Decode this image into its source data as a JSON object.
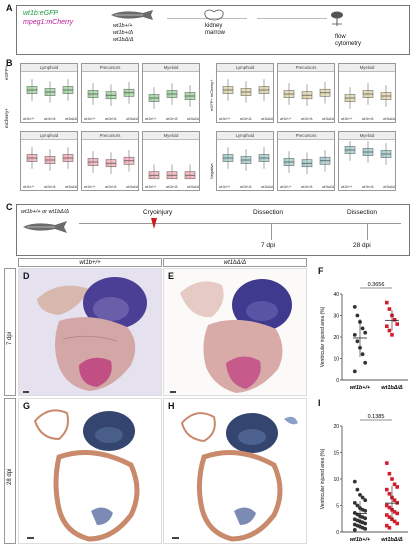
{
  "panels": {
    "A": {
      "letter": "A",
      "transgene_1": "wt1b:eGFP",
      "transgene_2": "mpeg1:mCherry",
      "genotypes": [
        "wt1b+/+",
        "wt1b+/Δ",
        "wt1bΔ/Δ"
      ],
      "kidney_label": "kidney\nmarrow",
      "flow_label": "flow\ncytometry"
    },
    "B": {
      "letter": "B",
      "facet_titles": [
        "Lymphoid",
        "Precursors",
        "Myeloid"
      ],
      "row_labels_left": [
        "eGFP+",
        "mCherry+"
      ],
      "row_labels_right": [
        "eGFP+ mCherry+",
        "Negative"
      ],
      "x_ticks": [
        "wt1b+/+",
        "wt1b+/Δ",
        "wt1bΔ/Δ"
      ],
      "colors": {
        "green": "#7cc27a",
        "pink": "#e88f9a",
        "beige": "#cfc58a",
        "teal": "#7fb6b8"
      }
    },
    "C": {
      "letter": "C",
      "genotype_text": "wt1b+/+ or wt1bΔ/Δ",
      "cryoinjury": "Cryoinjury",
      "dissection_1": "Dissection",
      "dpi_1": "7 dpi",
      "dissection_2": "Dissection",
      "dpi_2": "28 dpi"
    },
    "histology": {
      "col_header_1": "wt1b+/+",
      "col_header_2": "wt1bΔ/Δ",
      "row_1_time": "7 dpi",
      "row_2_time": "28 dpi",
      "letters": [
        "D",
        "E",
        "G",
        "H"
      ]
    },
    "F": {
      "letter": "F",
      "ylabel": "Ventricular injured area (%)",
      "pvalue": "0.3656",
      "yticks": [
        "0",
        "10",
        "20",
        "30",
        "40"
      ]
    },
    "I": {
      "letter": "I",
      "ylabel": "Ventricular injured area (%)",
      "pvalue": "0.1385",
      "yticks": [
        "0",
        "5",
        "10",
        "15",
        "20"
      ]
    }
  },
  "chart_data": [
    {
      "type": "scatter",
      "ylim": [
        0,
        40
      ],
      "ylabel": "Ventricular injured area (%)",
      "categories": [
        "wt1b+/+",
        "wt1bΔ/Δ"
      ],
      "annotation": "0.3656",
      "series": [
        {
          "color": "#333333",
          "values": [
            34,
            30,
            27,
            24,
            22,
            21,
            18,
            15,
            12,
            8,
            4
          ]
        },
        {
          "color": "#d61c2c",
          "values": [
            36,
            33,
            30,
            28,
            26,
            25,
            23,
            21
          ]
        }
      ]
    },
    {
      "type": "scatter",
      "ylim": [
        0,
        20
      ],
      "ylabel": "Ventricular injured area (%)",
      "categories": [
        "wt1b+/+",
        "wt1bΔ/Δ"
      ],
      "annotation": "0.1385",
      "series": [
        {
          "color": "#333333",
          "values": [
            9.5,
            8,
            7,
            6.5,
            6,
            5.5,
            5,
            4.5,
            4.2,
            4,
            3.6,
            3.3,
            3,
            2.8,
            2.6,
            2.4,
            2.2,
            2,
            1.8,
            1.6,
            1.4,
            1.2,
            1,
            0.8,
            0.6,
            0.4
          ]
        },
        {
          "color": "#d61c2c",
          "values": [
            13,
            11,
            10,
            9,
            8.5,
            8,
            7.2,
            6.5,
            6,
            5.5,
            5,
            4.6,
            4.2,
            3.8,
            3.5,
            3.2,
            2.8,
            2.4,
            2,
            1.6,
            1.2,
            0.8
          ]
        }
      ]
    }
  ]
}
